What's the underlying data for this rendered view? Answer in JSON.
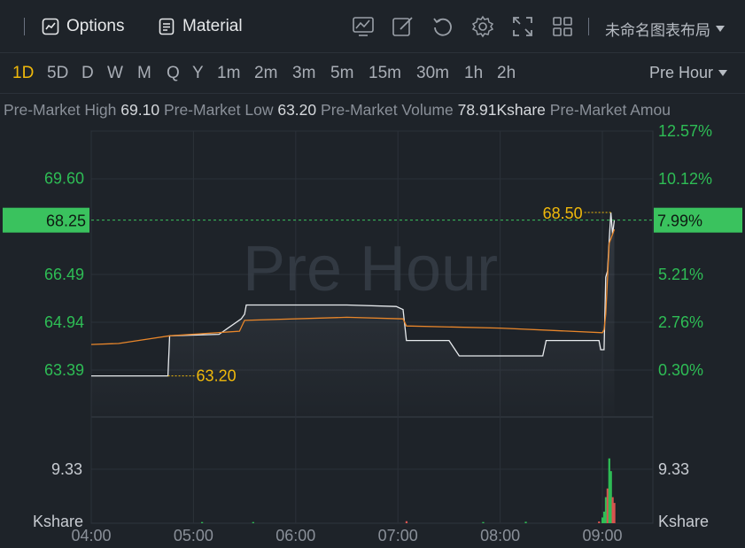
{
  "toolbar": {
    "options_label": "Options",
    "material_label": "Material",
    "layout_name": "未命名图表布局"
  },
  "periods": [
    "1D",
    "5D",
    "D",
    "W",
    "M",
    "Q",
    "Y",
    "1m",
    "2m",
    "3m",
    "5m",
    "15m",
    "30m",
    "1h",
    "2h"
  ],
  "active_period": "1D",
  "session": "Pre Hour",
  "stats": [
    {
      "label": "Pre-Market High",
      "value": "69.10"
    },
    {
      "label": "Pre-Market Low",
      "value": "63.20"
    },
    {
      "label": "Pre-Market Volume",
      "value": "78.91Kshare"
    },
    {
      "label": "Pre-Market Amou",
      "value": ""
    }
  ],
  "colors": {
    "price_line": "#e8ebee",
    "avg_line": "#e8862a",
    "up": "#2ebd55",
    "down": "#d9534f",
    "highlight": "#f0b90b",
    "badge": "#3ac25e"
  },
  "chart_data": {
    "type": "line",
    "watermark": "Pre Hour",
    "x_ticks": [
      "04:00",
      "05:00",
      "06:00",
      "07:00",
      "08:00",
      "09:00"
    ],
    "x_range": [
      "04:00",
      "09:18"
    ],
    "y_ticks_left": [
      "69.60",
      "66.49",
      "64.94",
      "63.39"
    ],
    "y_ticks_right": [
      "12.57%",
      "10.12%",
      "5.21%",
      "2.76%",
      "0.30%"
    ],
    "current_price": "68.25",
    "current_change": "7.99%",
    "high_marker": "68.50",
    "low_marker": "63.20",
    "volume_tick": "9.33",
    "volume_unit": "Kshare",
    "price_series": [
      {
        "t": "04:00",
        "p": 63.2
      },
      {
        "t": "04:45",
        "p": 63.2
      },
      {
        "t": "04:46",
        "p": 64.5
      },
      {
        "t": "05:15",
        "p": 64.55
      },
      {
        "t": "05:28",
        "p": 65.05
      },
      {
        "t": "05:30",
        "p": 65.2
      },
      {
        "t": "05:31",
        "p": 65.5
      },
      {
        "t": "06:00",
        "p": 65.5
      },
      {
        "t": "06:30",
        "p": 65.5
      },
      {
        "t": "06:59",
        "p": 65.45
      },
      {
        "t": "07:03",
        "p": 65.35
      },
      {
        "t": "07:05",
        "p": 64.35
      },
      {
        "t": "07:30",
        "p": 64.35
      },
      {
        "t": "07:36",
        "p": 63.85
      },
      {
        "t": "08:25",
        "p": 63.85
      },
      {
        "t": "08:27",
        "p": 64.35
      },
      {
        "t": "08:58",
        "p": 64.35
      },
      {
        "t": "08:59",
        "p": 64.05
      },
      {
        "t": "09:01",
        "p": 64.05
      },
      {
        "t": "09:02",
        "p": 66.4
      },
      {
        "t": "09:03",
        "p": 66.6
      },
      {
        "t": "09:04",
        "p": 67.6
      },
      {
        "t": "09:05",
        "p": 68.5
      },
      {
        "t": "09:06",
        "p": 67.8
      },
      {
        "t": "09:07",
        "p": 68.25
      }
    ],
    "avg_series": [
      {
        "t": "04:00",
        "p": 64.22
      },
      {
        "t": "04:16",
        "p": 64.25
      },
      {
        "t": "04:46",
        "p": 64.5
      },
      {
        "t": "05:27",
        "p": 64.65
      },
      {
        "t": "05:30",
        "p": 65.0
      },
      {
        "t": "06:30",
        "p": 65.1
      },
      {
        "t": "07:03",
        "p": 65.05
      },
      {
        "t": "07:05",
        "p": 64.82
      },
      {
        "t": "08:00",
        "p": 64.75
      },
      {
        "t": "09:00",
        "p": 64.6
      },
      {
        "t": "09:01",
        "p": 64.7
      },
      {
        "t": "09:02",
        "p": 65.2
      },
      {
        "t": "09:04",
        "p": 67.5
      },
      {
        "t": "09:07",
        "p": 67.95
      }
    ],
    "volume_series": [
      {
        "t": "05:05",
        "v": 0.2,
        "dir": "up"
      },
      {
        "t": "05:35",
        "v": 0.2,
        "dir": "up"
      },
      {
        "t": "07:05",
        "v": 0.35,
        "dir": "down"
      },
      {
        "t": "07:50",
        "v": 0.2,
        "dir": "up"
      },
      {
        "t": "08:15",
        "v": 0.25,
        "dir": "up"
      },
      {
        "t": "08:58",
        "v": 0.3,
        "dir": "down"
      },
      {
        "t": "09:00",
        "v": 1.0,
        "dir": "up"
      },
      {
        "t": "09:01",
        "v": 2.0,
        "dir": "up"
      },
      {
        "t": "09:02",
        "v": 4.5,
        "dir": "up"
      },
      {
        "t": "09:03",
        "v": 6.0,
        "dir": "down"
      },
      {
        "t": "09:04",
        "v": 11.2,
        "dir": "up"
      },
      {
        "t": "09:05",
        "v": 9.0,
        "dir": "up"
      },
      {
        "t": "09:06",
        "v": 4.5,
        "dir": "down"
      },
      {
        "t": "09:07",
        "v": 3.5,
        "dir": "down"
      }
    ]
  }
}
